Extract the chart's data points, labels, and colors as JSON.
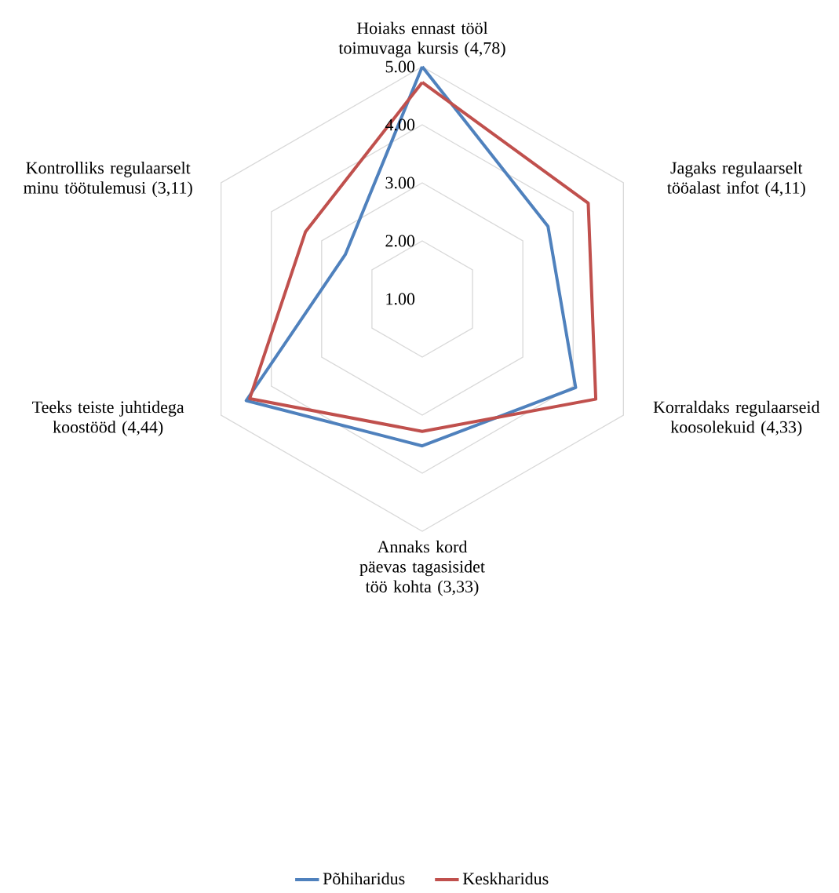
{
  "chart_data": {
    "type": "radar",
    "categories": [
      "Hoiaks ennast tööl toimuvaga kursis (4,78)",
      "Jagaks regulaarselt tööalast infot (4,11)",
      "Korraldaks regulaarseid koosolekuid (4,33)",
      "Annaks kord päevas tagasisidet töö kohta (3,33)",
      "Teeks teiste juhtidega koostööd (4,44)",
      "Kontrolliks regulaarselt minu töötulemusi (3,11)"
    ],
    "series": [
      {
        "name": "Põhiharidus",
        "color": "#4f81bd",
        "values": [
          5.0,
          3.5,
          4.05,
          3.53,
          4.5,
          2.53
        ]
      },
      {
        "name": "Keskharidus",
        "color": "#c0504d",
        "values": [
          4.73,
          4.3,
          4.45,
          3.28,
          4.43,
          3.32
        ]
      }
    ],
    "ylim": [
      1,
      5
    ],
    "yticks": [
      {
        "value": 1,
        "label": "1.00"
      },
      {
        "value": 2,
        "label": "2.00"
      },
      {
        "value": 3,
        "label": "3.00"
      },
      {
        "value": 4,
        "label": "4.00"
      },
      {
        "value": 5,
        "label": "5.00"
      }
    ],
    "grid": true,
    "legend": "bottom"
  }
}
